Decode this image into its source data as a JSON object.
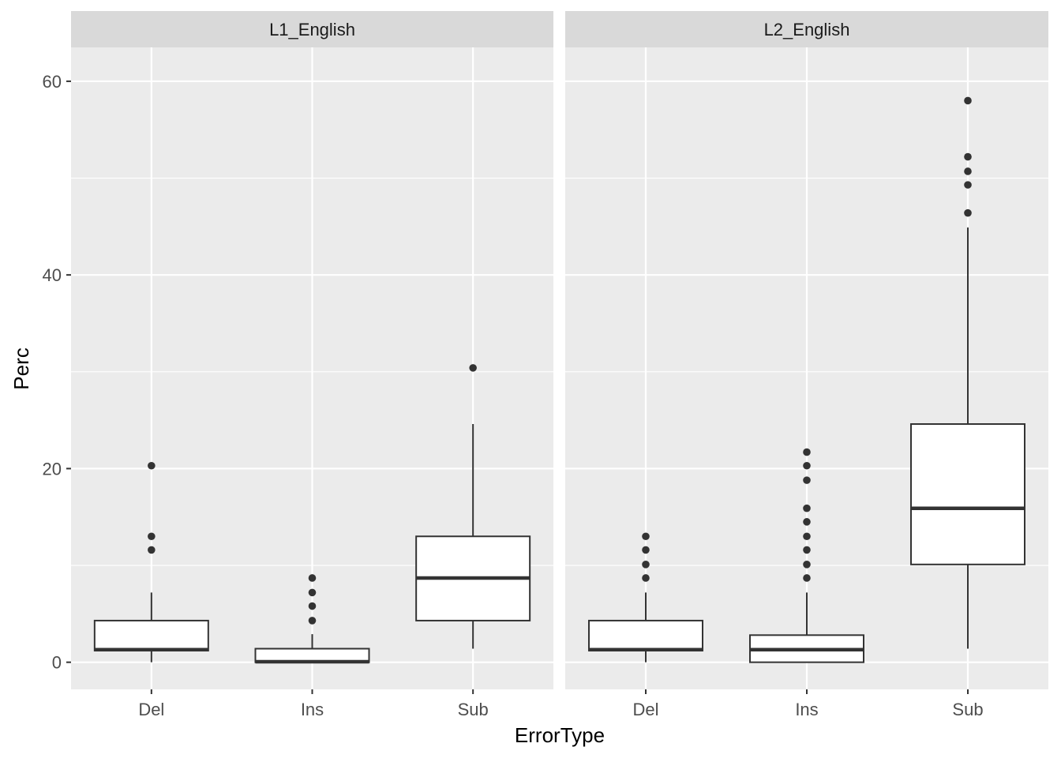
{
  "chart_data": {
    "type": "boxplot",
    "xlabel": "ErrorType",
    "ylabel": "Perc",
    "ylim": [
      -2.8,
      63.5
    ],
    "y_ticks": [
      0,
      20,
      40,
      60
    ],
    "categories": [
      "Del",
      "Ins",
      "Sub"
    ],
    "grid": true,
    "facets": [
      {
        "label": "L1_English",
        "boxes": [
          {
            "category": "Del",
            "q1": 1.2,
            "median": 1.3,
            "q3": 4.3,
            "whisker_low": 0,
            "whisker_high": 7.2,
            "outliers": [
              11.6,
              13.0,
              20.3
            ]
          },
          {
            "category": "Ins",
            "q1": 0,
            "median": 0.05,
            "q3": 1.4,
            "whisker_low": 0,
            "whisker_high": 2.9,
            "outliers": [
              4.3,
              5.8,
              7.2,
              8.7
            ]
          },
          {
            "category": "Sub",
            "q1": 4.3,
            "median": 8.7,
            "q3": 13.0,
            "whisker_low": 1.4,
            "whisker_high": 24.6,
            "outliers": [
              30.4
            ]
          }
        ]
      },
      {
        "label": "L2_English",
        "boxes": [
          {
            "category": "Del",
            "q1": 1.2,
            "median": 1.3,
            "q3": 4.3,
            "whisker_low": 0,
            "whisker_high": 7.2,
            "outliers": [
              8.7,
              10.1,
              11.6,
              13.0
            ]
          },
          {
            "category": "Ins",
            "q1": 0,
            "median": 1.3,
            "q3": 2.8,
            "whisker_low": 0,
            "whisker_high": 7.2,
            "outliers": [
              8.7,
              10.1,
              11.6,
              13.0,
              14.5,
              15.9,
              18.8,
              20.3,
              21.7
            ]
          },
          {
            "category": "Sub",
            "q1": 10.1,
            "median": 15.9,
            "q3": 24.6,
            "whisker_low": 1.4,
            "whisker_high": 44.9,
            "outliers": [
              46.4,
              49.3,
              50.7,
              52.2,
              58.0
            ]
          }
        ]
      }
    ]
  },
  "colors": {
    "panel_background": "#ebebeb",
    "strip_background": "#d9d9d9",
    "gridline": "#ffffff",
    "box_fill": "#ffffff",
    "box_stroke": "#333333",
    "outlier": "#333333",
    "tick_label": "#4d4d4d",
    "axis_title": "#000000",
    "strip_text": "#1a1a1a"
  }
}
